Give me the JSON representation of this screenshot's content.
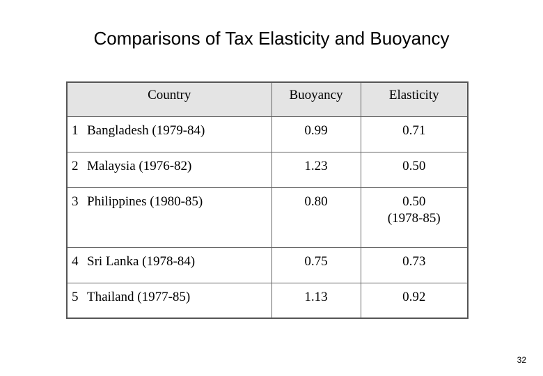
{
  "slide": {
    "title": "Comparisons of Tax Elasticity and Buoyancy",
    "page_number": "32"
  },
  "table": {
    "headers": {
      "country": "Country",
      "buoyancy": "Buoyancy",
      "elasticity": "Elasticity"
    },
    "rows": [
      {
        "num": "1",
        "country": "Bangladesh (1979-84)",
        "buoyancy": "0.99",
        "elasticity": "0.71",
        "elasticity_note": ""
      },
      {
        "num": "2",
        "country": "Malaysia (1976-82)",
        "buoyancy": "1.23",
        "elasticity": "0.50",
        "elasticity_note": ""
      },
      {
        "num": "3",
        "country": "Philippines (1980-85)",
        "buoyancy": "0.80",
        "elasticity": "0.50",
        "elasticity_note": "(1978-85)"
      },
      {
        "num": "4",
        "country": "Sri Lanka (1978-84)",
        "buoyancy": "0.75",
        "elasticity": "0.73",
        "elasticity_note": ""
      },
      {
        "num": "5",
        "country": "Thailand (1977-85)",
        "buoyancy": "1.13",
        "elasticity": "0.92",
        "elasticity_note": ""
      }
    ]
  }
}
